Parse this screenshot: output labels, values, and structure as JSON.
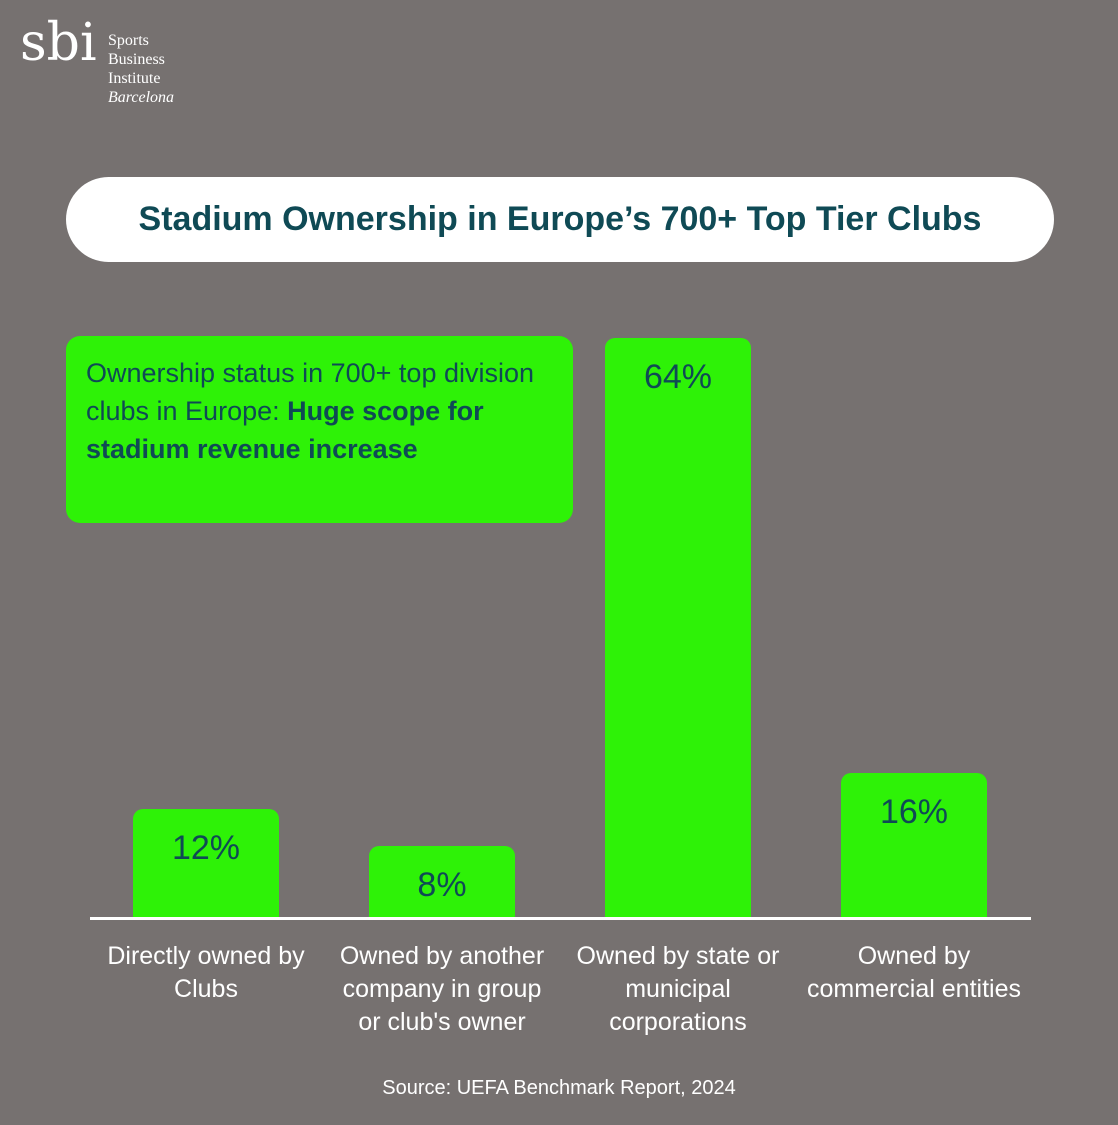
{
  "logo": {
    "mark": "sbi",
    "line1": "Sports",
    "line2": "Business",
    "line3": "Institute",
    "line4": "Barcelona"
  },
  "title": "Stadium Ownership in Europe’s 700+ Top Tier Clubs",
  "note": {
    "normal": "Ownership status in 700+ top division clubs in Europe: ",
    "bold": "Huge scope for stadium revenue increase"
  },
  "chart_data": {
    "type": "bar",
    "title": "Stadium Ownership in Europe’s 700+ Top Tier Clubs",
    "categories": [
      "Directly owned by\nClubs",
      "Owned by another\ncompany in group\nor club's owner",
      "Owned by state or\nmunicipal\ncorporations",
      "Owned by\ncommercial entities"
    ],
    "values": [
      12,
      8,
      64,
      16
    ],
    "value_labels": [
      "12%",
      "8%",
      "64%",
      "16%"
    ],
    "unit": "%",
    "ylim": [
      0,
      64
    ],
    "xlabel": "",
    "ylabel": "",
    "grid": false,
    "color": "#2ef207"
  },
  "source": "Source: UEFA Benchmark Report, 2024",
  "colors": {
    "background": "#767170",
    "accent": "#2ef207",
    "text_dark": "#0f4a55"
  }
}
